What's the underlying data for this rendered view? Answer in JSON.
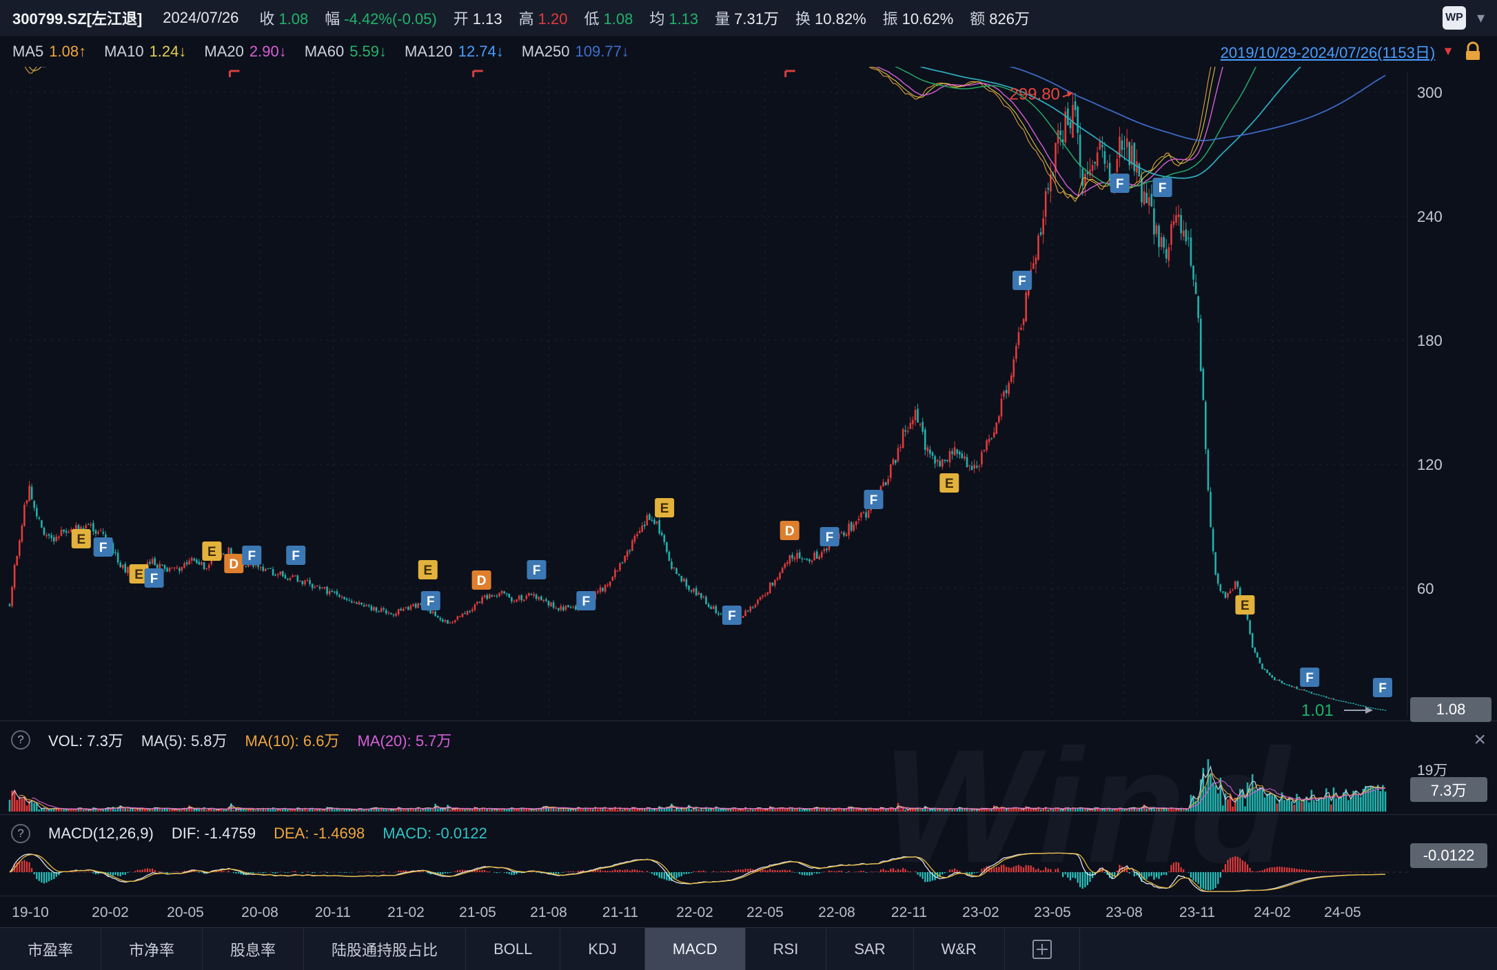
{
  "app": {
    "watermark": "Wind"
  },
  "icons": {
    "help": "?",
    "close": "×",
    "chevron_down": "▾",
    "dropdown_triangle": "▼"
  },
  "topbar": {
    "symbol": "300799.SZ[左江退]",
    "date": "2024/07/26",
    "fields": [
      {
        "label": "收",
        "value": "1.08",
        "color": "green"
      },
      {
        "label": "幅",
        "value": "-4.42%(-0.05)",
        "color": "green"
      },
      {
        "label": "开",
        "value": "1.13",
        "color": "white"
      },
      {
        "label": "高",
        "value": "1.20",
        "color": "red"
      },
      {
        "label": "低",
        "value": "1.08",
        "color": "green"
      },
      {
        "label": "均",
        "value": "1.13",
        "color": "green"
      },
      {
        "label": "量",
        "value": "7.31万",
        "color": "white"
      },
      {
        "label": "换",
        "value": "10.82%",
        "color": "white"
      },
      {
        "label": "振",
        "value": "10.62%",
        "color": "white"
      },
      {
        "label": "额",
        "value": "826万",
        "color": "white"
      }
    ],
    "logo": "WP"
  },
  "ma_bar": {
    "items": [
      {
        "label": "MA5",
        "value": "1.08↑",
        "color": "#f0a63a"
      },
      {
        "label": "MA10",
        "value": "1.24↓",
        "color": "#e7cf4a"
      },
      {
        "label": "MA20",
        "value": "2.90↓",
        "color": "#d75fd7"
      },
      {
        "label": "MA60",
        "value": "5.59↓",
        "color": "#27b36b"
      },
      {
        "label": "MA120",
        "value": "12.74↓",
        "color": "#4a9eff"
      },
      {
        "label": "MA250",
        "value": "109.77↓",
        "color": "#3f6fce"
      }
    ],
    "date_range": "2019/10/29-2024/07/26(1153日)"
  },
  "vol_panel": {
    "legend": [
      {
        "text": "VOL: 7.3万",
        "color": "#e4e8ef"
      },
      {
        "text": "MA(5): 5.8万",
        "color": "#d9dee6"
      },
      {
        "text": "MA(10): 6.6万",
        "color": "#f0a63a"
      },
      {
        "text": "MA(20): 5.7万",
        "color": "#d75fd7"
      }
    ],
    "scale_top": "19万",
    "badge": "7.3万"
  },
  "macd_panel": {
    "legend": [
      {
        "text": "MACD(12,26,9)",
        "color": "#e4e8ef"
      },
      {
        "text": "DIF: -1.4759",
        "color": "#e4e8ef"
      },
      {
        "text": "DEA: -1.4698",
        "color": "#f0a63a"
      },
      {
        "text": "MACD: -0.0122",
        "color": "#2fc4c4"
      }
    ],
    "badge": "-0.0122"
  },
  "tabs": {
    "items": [
      "市盈率",
      "市净率",
      "股息率",
      "陆股通持股占比",
      "BOLL",
      "KDJ",
      "MACD",
      "RSI",
      "SAR",
      "W&R"
    ],
    "active": "MACD"
  },
  "chart_data": {
    "type": "candlestick",
    "title": "300799.SZ 左江退 日K线 2019/10/29-2024/07/26",
    "total_days": 1153,
    "y_axis_labels": [
      300,
      240,
      180,
      120,
      60
    ],
    "x_axis_labels": [
      "19-10",
      "20-02",
      "20-05",
      "20-08",
      "20-11",
      "21-02",
      "21-05",
      "21-08",
      "21-11",
      "22-02",
      "22-05",
      "22-08",
      "22-11",
      "23-02",
      "23-05",
      "23-08",
      "23-11",
      "24-02",
      "24-05"
    ],
    "x_label_t": [
      0.015,
      0.073,
      0.128,
      0.182,
      0.235,
      0.288,
      0.34,
      0.392,
      0.444,
      0.498,
      0.549,
      0.601,
      0.654,
      0.706,
      0.758,
      0.81,
      0.863,
      0.918,
      0.969
    ],
    "price_anchors": [
      [
        0.0,
        52
      ],
      [
        0.004,
        72
      ],
      [
        0.01,
        96
      ],
      [
        0.0145,
        108
      ],
      [
        0.02,
        95
      ],
      [
        0.028,
        84
      ],
      [
        0.042,
        87
      ],
      [
        0.056,
        91
      ],
      [
        0.066,
        86
      ],
      [
        0.073,
        80
      ],
      [
        0.082,
        70
      ],
      [
        0.09,
        67
      ],
      [
        0.102,
        73
      ],
      [
        0.112,
        70
      ],
      [
        0.122,
        69
      ],
      [
        0.132,
        73
      ],
      [
        0.142,
        71
      ],
      [
        0.152,
        76
      ],
      [
        0.16,
        78
      ],
      [
        0.17,
        72
      ],
      [
        0.182,
        70
      ],
      [
        0.195,
        67
      ],
      [
        0.21,
        64
      ],
      [
        0.225,
        60
      ],
      [
        0.238,
        57
      ],
      [
        0.252,
        53
      ],
      [
        0.266,
        50
      ],
      [
        0.28,
        48
      ],
      [
        0.292,
        51
      ],
      [
        0.3,
        53
      ],
      [
        0.31,
        46
      ],
      [
        0.32,
        43
      ],
      [
        0.332,
        49
      ],
      [
        0.344,
        55
      ],
      [
        0.356,
        58
      ],
      [
        0.366,
        54
      ],
      [
        0.378,
        57
      ],
      [
        0.39,
        53
      ],
      [
        0.402,
        50
      ],
      [
        0.412,
        51
      ],
      [
        0.422,
        55
      ],
      [
        0.434,
        62
      ],
      [
        0.446,
        74
      ],
      [
        0.456,
        85
      ],
      [
        0.466,
        96
      ],
      [
        0.472,
        88
      ],
      [
        0.482,
        70
      ],
      [
        0.492,
        62
      ],
      [
        0.502,
        56
      ],
      [
        0.512,
        50
      ],
      [
        0.524,
        44
      ],
      [
        0.536,
        49
      ],
      [
        0.548,
        57
      ],
      [
        0.56,
        68
      ],
      [
        0.57,
        77
      ],
      [
        0.58,
        73
      ],
      [
        0.592,
        79
      ],
      [
        0.604,
        86
      ],
      [
        0.616,
        92
      ],
      [
        0.628,
        100
      ],
      [
        0.64,
        116
      ],
      [
        0.65,
        135
      ],
      [
        0.658,
        146
      ],
      [
        0.666,
        129
      ],
      [
        0.676,
        120
      ],
      [
        0.688,
        126
      ],
      [
        0.698,
        118
      ],
      [
        0.707,
        124
      ],
      [
        0.715,
        135
      ],
      [
        0.724,
        155
      ],
      [
        0.734,
        182
      ],
      [
        0.744,
        215
      ],
      [
        0.752,
        244
      ],
      [
        0.76,
        272
      ],
      [
        0.768,
        288
      ],
      [
        0.7735,
        292
      ],
      [
        0.779,
        258
      ],
      [
        0.786,
        266
      ],
      [
        0.794,
        275
      ],
      [
        0.801,
        259
      ],
      [
        0.808,
        274
      ],
      [
        0.816,
        267
      ],
      [
        0.824,
        251
      ],
      [
        0.832,
        237
      ],
      [
        0.84,
        223
      ],
      [
        0.849,
        239
      ],
      [
        0.856,
        229
      ],
      [
        0.862,
        208
      ],
      [
        0.867,
        155
      ],
      [
        0.872,
        96
      ],
      [
        0.877,
        63
      ],
      [
        0.884,
        55
      ],
      [
        0.891,
        63
      ],
      [
        0.898,
        50
      ],
      [
        0.904,
        30
      ],
      [
        0.911,
        21
      ],
      [
        0.919,
        16
      ],
      [
        0.928,
        13.5
      ],
      [
        0.938,
        11
      ],
      [
        0.947,
        9.2
      ],
      [
        0.956,
        7.4
      ],
      [
        0.965,
        5.8
      ],
      [
        0.974,
        4.5
      ],
      [
        0.983,
        3.1
      ],
      [
        0.991,
        1.9
      ],
      [
        1.0,
        1.08
      ]
    ],
    "last_candle": {
      "open": 1.13,
      "high": 1.2,
      "low": 1.08,
      "close": 1.08
    },
    "annotations": {
      "peak": {
        "t": 0.7735,
        "price": 299.8,
        "label": "299.80"
      },
      "low": {
        "t": 0.993,
        "price": 1.01,
        "label": "1.01"
      },
      "last_price_badge": "1.08"
    },
    "event_markers": [
      {
        "t": 0.052,
        "p": 84,
        "k": "E"
      },
      {
        "t": 0.068,
        "p": 80,
        "k": "F"
      },
      {
        "t": 0.094,
        "p": 67,
        "k": "E"
      },
      {
        "t": 0.105,
        "p": 65,
        "k": "F"
      },
      {
        "t": 0.147,
        "p": 78,
        "k": "E"
      },
      {
        "t": 0.163,
        "p": 72,
        "k": "D"
      },
      {
        "t": 0.176,
        "p": 76,
        "k": "F"
      },
      {
        "t": 0.208,
        "p": 76,
        "k": "F"
      },
      {
        "t": 0.304,
        "p": 69,
        "k": "E"
      },
      {
        "t": 0.306,
        "p": 54,
        "k": "F"
      },
      {
        "t": 0.343,
        "p": 64,
        "k": "D"
      },
      {
        "t": 0.383,
        "p": 69,
        "k": "F"
      },
      {
        "t": 0.419,
        "p": 54,
        "k": "F"
      },
      {
        "t": 0.476,
        "p": 99,
        "k": "E"
      },
      {
        "t": 0.525,
        "p": 47,
        "k": "F"
      },
      {
        "t": 0.567,
        "p": 88,
        "k": "D"
      },
      {
        "t": 0.596,
        "p": 85,
        "k": "F"
      },
      {
        "t": 0.628,
        "p": 103,
        "k": "F"
      },
      {
        "t": 0.683,
        "p": 111,
        "k": "E"
      },
      {
        "t": 0.736,
        "p": 209,
        "k": "F"
      },
      {
        "t": 0.807,
        "p": 256,
        "k": "F"
      },
      {
        "t": 0.838,
        "p": 254,
        "k": "F"
      },
      {
        "t": 0.898,
        "p": 52,
        "k": "E"
      },
      {
        "t": 0.945,
        "p": 17,
        "k": "F"
      },
      {
        "t": 0.998,
        "p": 12,
        "k": "F"
      }
    ],
    "dividend_marks_t": [
      0.16,
      0.337,
      0.564
    ],
    "ma_windows_days": [
      5,
      10,
      20,
      60,
      120,
      250
    ],
    "volume": {
      "axis_max": 19,
      "last": 7.3
    },
    "macd_params": "12,26,9",
    "colors": {
      "up": "#e23b3b",
      "down": "#21b2ac",
      "ma5": "#f0a63a",
      "ma10": "#e7cf4a",
      "ma20": "#d75fd7",
      "ma60": "#27b36b",
      "ma120": "#2fb3c4",
      "ma250": "#3f6fce",
      "markers": {
        "E": {
          "bg": "#e3b23c",
          "fg": "#3a2a08"
        },
        "D": {
          "bg": "#df7f2e",
          "fg": "#ffffff"
        },
        "F": {
          "bg": "#3c78b4",
          "fg": "#ffffff"
        }
      }
    }
  }
}
